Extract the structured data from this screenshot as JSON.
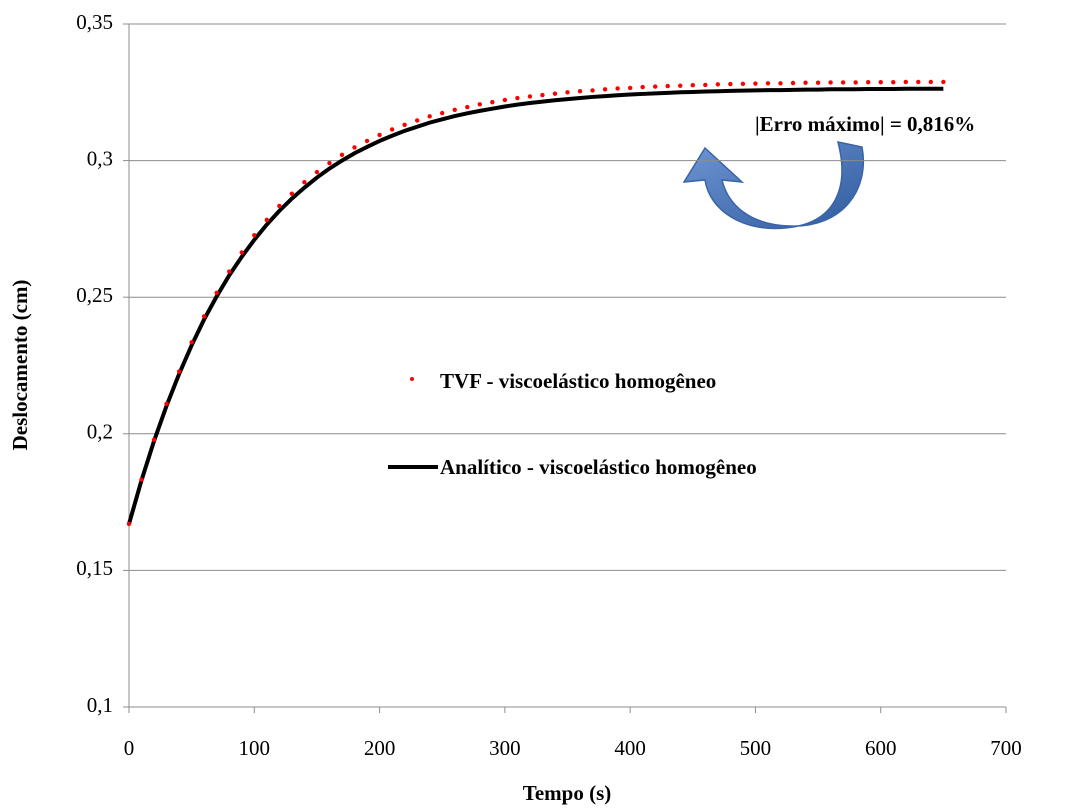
{
  "chart_data": {
    "type": "line",
    "xlabel": "Tempo (s)",
    "ylabel": "Deslocamento (cm)",
    "annotation": "|Erro máximo| = 0,816%",
    "xlim": [
      0,
      700
    ],
    "xticks": [
      0,
      100,
      200,
      300,
      400,
      500,
      600,
      700
    ],
    "ylim": [
      0.1,
      0.35
    ],
    "yticks": [
      {
        "value": 0.1,
        "label": "0,1"
      },
      {
        "value": 0.15,
        "label": "0,15"
      },
      {
        "value": 0.2,
        "label": "0,2"
      },
      {
        "value": 0.25,
        "label": "0,25"
      },
      {
        "value": 0.3,
        "label": "0,3"
      },
      {
        "value": 0.35,
        "label": "0,35"
      }
    ],
    "grid": true,
    "x": [
      0,
      10,
      20,
      30,
      40,
      50,
      60,
      70,
      80,
      90,
      100,
      110,
      120,
      130,
      140,
      150,
      160,
      170,
      180,
      190,
      200,
      210,
      220,
      230,
      240,
      250,
      260,
      270,
      280,
      290,
      300,
      310,
      320,
      330,
      340,
      350,
      360,
      370,
      380,
      390,
      400,
      410,
      420,
      430,
      440,
      450,
      460,
      470,
      480,
      490,
      500,
      510,
      520,
      530,
      540,
      550,
      560,
      570,
      580,
      590,
      600,
      610,
      620,
      630,
      640,
      650
    ],
    "series": [
      {
        "name": "Analítico - viscoelástico homogêneo",
        "color": "#000000",
        "style": "line",
        "values": [
          0.167,
          0.183,
          0.1974,
          0.2103,
          0.2219,
          0.2324,
          0.2419,
          0.2503,
          0.258,
          0.2648,
          0.271,
          0.2766,
          0.2816,
          0.2861,
          0.2901,
          0.2938,
          0.2971,
          0.3,
          0.3027,
          0.305,
          0.3072,
          0.3091,
          0.3109,
          0.3124,
          0.3139,
          0.3151,
          0.3163,
          0.3173,
          0.3182,
          0.319,
          0.3198,
          0.3205,
          0.3211,
          0.3216,
          0.3221,
          0.3225,
          0.3229,
          0.3233,
          0.3236,
          0.3239,
          0.3242,
          0.3244,
          0.3246,
          0.3248,
          0.325,
          0.3251,
          0.3253,
          0.3254,
          0.3255,
          0.3256,
          0.3257,
          0.3258,
          0.3258,
          0.3259,
          0.326,
          0.326,
          0.3261,
          0.3261,
          0.3261,
          0.3262,
          0.3262,
          0.3262,
          0.3263,
          0.3263,
          0.3263,
          0.3263
        ]
      },
      {
        "name": "TVF - viscoelástico homogêneo",
        "color": "#ff0000",
        "style": "markers",
        "values": [
          0.167,
          0.1832,
          0.1978,
          0.211,
          0.2228,
          0.2335,
          0.243,
          0.2516,
          0.2594,
          0.2664,
          0.2727,
          0.2783,
          0.2834,
          0.2879,
          0.2921,
          0.2958,
          0.2991,
          0.3021,
          0.3048,
          0.3072,
          0.3094,
          0.3114,
          0.3131,
          0.3147,
          0.3162,
          0.3174,
          0.3186,
          0.3196,
          0.3206,
          0.3214,
          0.3222,
          0.3229,
          0.3235,
          0.324,
          0.3245,
          0.325,
          0.3254,
          0.3257,
          0.3261,
          0.3264,
          0.3266,
          0.3269,
          0.3271,
          0.3273,
          0.3274,
          0.3276,
          0.3277,
          0.3279,
          0.328,
          0.3281,
          0.3282,
          0.3283,
          0.3283,
          0.3284,
          0.3285,
          0.3285,
          0.3286,
          0.3286,
          0.3286,
          0.3287,
          0.3287,
          0.3287,
          0.3288,
          0.3288,
          0.3288,
          0.3288
        ]
      }
    ]
  }
}
